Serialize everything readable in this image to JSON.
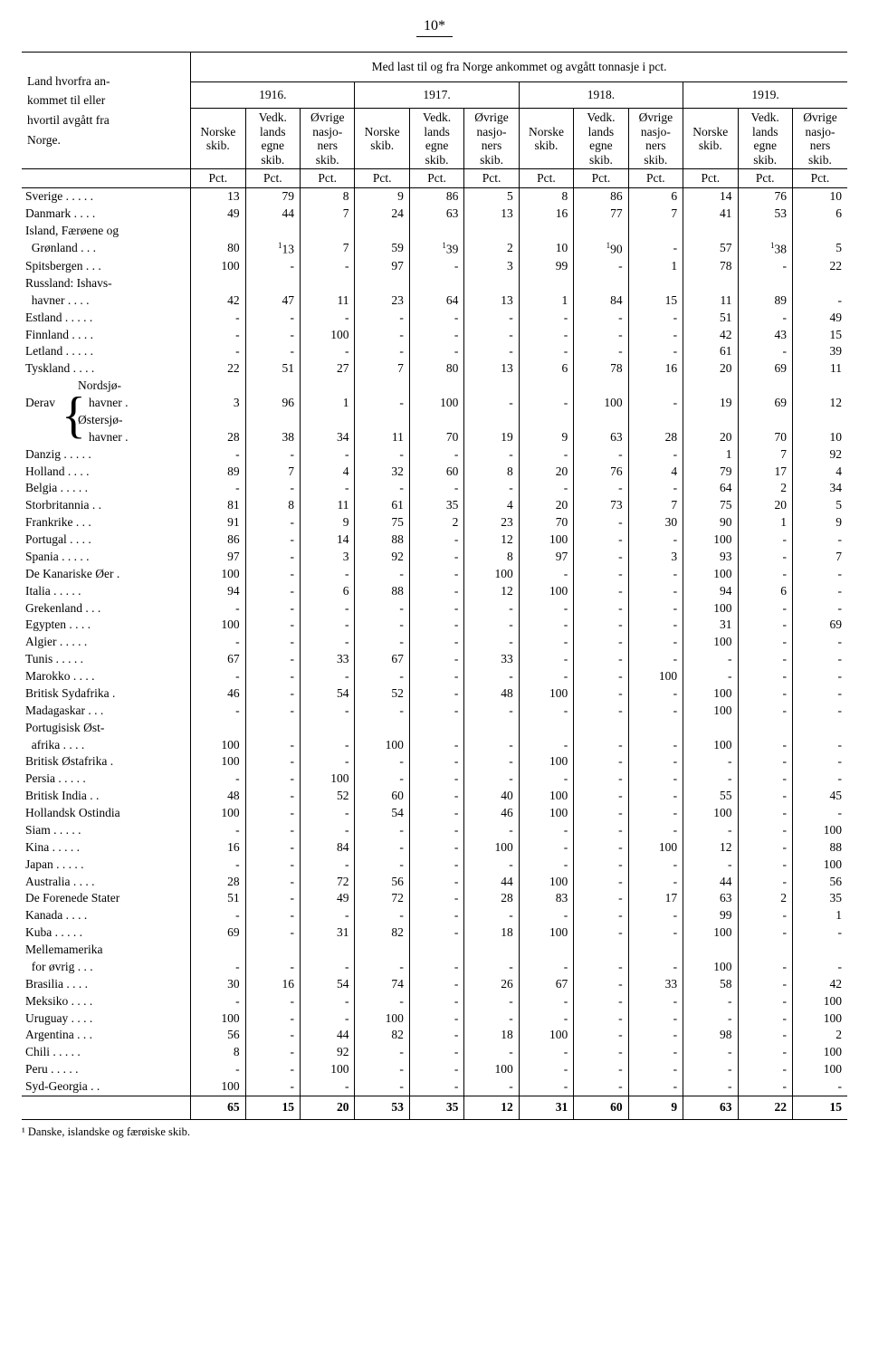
{
  "page_number": "10*",
  "header": {
    "row_title_lines": [
      "Land hvorfra an-",
      "kommet til eller",
      "hvortil avgått fra",
      "Norge."
    ],
    "span_title": "Med last til og fra Norge ankommet og avgått tonnasje i pct.",
    "years": [
      "1916.",
      "1917.",
      "1918.",
      "1919."
    ],
    "sub": [
      "Norske skib.",
      "Vedk. lands egne skib.",
      "Øvrige nasjo- ners skib."
    ],
    "sub_lines": {
      "a": [
        "Norske",
        "skib."
      ],
      "b": [
        "Vedk.",
        "lands",
        "egne",
        "skib."
      ],
      "c": [
        "Øvrige",
        "nasjo-",
        "ners",
        "skib."
      ]
    },
    "pct": "Pct."
  },
  "rows": [
    {
      "label": "Sverige . . . . .",
      "v": [
        "13",
        "79",
        "8",
        "9",
        "86",
        "5",
        "8",
        "86",
        "6",
        "14",
        "76",
        "10"
      ]
    },
    {
      "label": "Danmark . . . .",
      "v": [
        "49",
        "44",
        "7",
        "24",
        "63",
        "13",
        "16",
        "77",
        "7",
        "41",
        "53",
        "6"
      ]
    },
    {
      "label": "Island, Færøene og",
      "v": [
        "",
        "",
        "",
        "",
        "",
        "",
        "",
        "",
        "",
        "",
        "",
        ""
      ],
      "noborder": true
    },
    {
      "label": "  Grønland . . .",
      "v": [
        "80",
        "¹13",
        "7",
        "59",
        "¹39",
        "2",
        "10",
        "¹90",
        "-",
        "57",
        "¹38",
        "5"
      ]
    },
    {
      "label": "Spitsbergen . . .",
      "v": [
        "100",
        "-",
        "-",
        "97",
        "-",
        "3",
        "99",
        "-",
        "1",
        "78",
        "-",
        "22"
      ]
    },
    {
      "label": "Russland: Ishavs-",
      "v": [
        "",
        "",
        "",
        "",
        "",
        "",
        "",
        "",
        "",
        "",
        "",
        ""
      ],
      "noborder": true
    },
    {
      "label": "  havner . . . .",
      "v": [
        "42",
        "47",
        "11",
        "23",
        "64",
        "13",
        "1",
        "84",
        "15",
        "11",
        "89",
        "-"
      ]
    },
    {
      "label": "Estland . . . . .",
      "v": [
        "-",
        "-",
        "-",
        "-",
        "-",
        "-",
        "-",
        "-",
        "-",
        "51",
        "-",
        "49"
      ]
    },
    {
      "label": "Finnland . . . .",
      "v": [
        "-",
        "-",
        "100",
        "-",
        "-",
        "-",
        "-",
        "-",
        "-",
        "42",
        "43",
        "15"
      ]
    },
    {
      "label": "Letland . . . . .",
      "v": [
        "-",
        "-",
        "-",
        "-",
        "-",
        "-",
        "-",
        "-",
        "-",
        "61",
        "-",
        "39"
      ]
    },
    {
      "label": "Tyskland . . . .",
      "v": [
        "22",
        "51",
        "27",
        "7",
        "80",
        "13",
        "6",
        "78",
        "16",
        "20",
        "69",
        "11"
      ]
    },
    {
      "label": "DERAV_N1",
      "v": [
        "",
        "",
        "",
        "",
        "",
        "",
        "",
        "",
        "",
        "",
        "",
        ""
      ],
      "noborder": true,
      "derav": "top"
    },
    {
      "label": "DERAV_N2",
      "v": [
        "3",
        "96",
        "1",
        "-",
        "100",
        "-",
        "-",
        "100",
        "-",
        "19",
        "69",
        "12"
      ],
      "derav": "mid1"
    },
    {
      "label": "DERAV_O1",
      "v": [
        "",
        "",
        "",
        "",
        "",
        "",
        "",
        "",
        "",
        "",
        "",
        ""
      ],
      "noborder": true,
      "derav": "mid2"
    },
    {
      "label": "DERAV_O2",
      "v": [
        "28",
        "38",
        "34",
        "11",
        "70",
        "19",
        "9",
        "63",
        "28",
        "20",
        "70",
        "10"
      ],
      "derav": "bot"
    },
    {
      "label": "Danzig . . . . .",
      "v": [
        "-",
        "-",
        "-",
        "-",
        "-",
        "-",
        "-",
        "-",
        "-",
        "1",
        "7",
        "92"
      ]
    },
    {
      "label": "Holland . . . .",
      "v": [
        "89",
        "7",
        "4",
        "32",
        "60",
        "8",
        "20",
        "76",
        "4",
        "79",
        "17",
        "4"
      ]
    },
    {
      "label": "Belgia . . . . .",
      "v": [
        "-",
        "-",
        "-",
        "-",
        "-",
        "-",
        "-",
        "-",
        "-",
        "64",
        "2",
        "34"
      ]
    },
    {
      "label": "Storbritannia . .",
      "v": [
        "81",
        "8",
        "11",
        "61",
        "35",
        "4",
        "20",
        "73",
        "7",
        "75",
        "20",
        "5"
      ]
    },
    {
      "label": "Frankrike . . .",
      "v": [
        "91",
        "-",
        "9",
        "75",
        "2",
        "23",
        "70",
        "-",
        "30",
        "90",
        "1",
        "9"
      ]
    },
    {
      "label": "Portugal . . . .",
      "v": [
        "86",
        "-",
        "14",
        "88",
        "-",
        "12",
        "100",
        "-",
        "-",
        "100",
        "-",
        "-"
      ]
    },
    {
      "label": "Spania . . . . .",
      "v": [
        "97",
        "-",
        "3",
        "92",
        "-",
        "8",
        "97",
        "-",
        "3",
        "93",
        "-",
        "7"
      ]
    },
    {
      "label": "De Kanariske Øer .",
      "v": [
        "100",
        "-",
        "-",
        "-",
        "-",
        "100",
        "-",
        "-",
        "-",
        "100",
        "-",
        "-"
      ]
    },
    {
      "label": "Italia . . . . .",
      "v": [
        "94",
        "-",
        "6",
        "88",
        "-",
        "12",
        "100",
        "-",
        "-",
        "94",
        "6",
        "-"
      ]
    },
    {
      "label": "Grekenland . . .",
      "v": [
        "-",
        "-",
        "-",
        "-",
        "-",
        "-",
        "-",
        "-",
        "-",
        "100",
        "-",
        "-"
      ]
    },
    {
      "label": "Egypten . . . .",
      "v": [
        "100",
        "-",
        "-",
        "-",
        "-",
        "-",
        "-",
        "-",
        "-",
        "31",
        "-",
        "69"
      ]
    },
    {
      "label": "Algier . . . . .",
      "v": [
        "-",
        "-",
        "-",
        "-",
        "-",
        "-",
        "-",
        "-",
        "-",
        "100",
        "-",
        "-"
      ]
    },
    {
      "label": "Tunis . . . . .",
      "v": [
        "67",
        "-",
        "33",
        "67",
        "-",
        "33",
        "-",
        "-",
        "-",
        "-",
        "-",
        "-"
      ]
    },
    {
      "label": "Marokko . . . .",
      "v": [
        "-",
        "-",
        "-",
        "-",
        "-",
        "-",
        "-",
        "-",
        "100",
        "-",
        "-",
        "-"
      ]
    },
    {
      "label": "Britisk Sydafrika .",
      "v": [
        "46",
        "-",
        "54",
        "52",
        "-",
        "48",
        "100",
        "-",
        "-",
        "100",
        "-",
        "-"
      ]
    },
    {
      "label": "Madagaskar . . .",
      "v": [
        "-",
        "-",
        "-",
        "-",
        "-",
        "-",
        "-",
        "-",
        "-",
        "100",
        "-",
        "-"
      ]
    },
    {
      "label": "Portugisisk Øst-",
      "v": [
        "",
        "",
        "",
        "",
        "",
        "",
        "",
        "",
        "",
        "",
        "",
        ""
      ],
      "noborder": true
    },
    {
      "label": "  afrika . . . .",
      "v": [
        "100",
        "-",
        "-",
        "100",
        "-",
        "-",
        "-",
        "-",
        "-",
        "100",
        "-",
        "-"
      ]
    },
    {
      "label": "Britisk Østafrika .",
      "v": [
        "100",
        "-",
        "-",
        "-",
        "-",
        "-",
        "100",
        "-",
        "-",
        "-",
        "-",
        "-"
      ]
    },
    {
      "label": "Persia . . . . .",
      "v": [
        "-",
        "-",
        "100",
        "-",
        "-",
        "-",
        "-",
        "-",
        "-",
        "-",
        "-",
        "-"
      ]
    },
    {
      "label": "Britisk India . .",
      "v": [
        "48",
        "-",
        "52",
        "60",
        "-",
        "40",
        "100",
        "-",
        "-",
        "55",
        "-",
        "45"
      ]
    },
    {
      "label": "Hollandsk Ostindia",
      "v": [
        "100",
        "-",
        "-",
        "54",
        "-",
        "46",
        "100",
        "-",
        "-",
        "100",
        "-",
        "-"
      ]
    },
    {
      "label": "Siam . . . . .",
      "v": [
        "-",
        "-",
        "-",
        "-",
        "-",
        "-",
        "-",
        "-",
        "-",
        "-",
        "-",
        "100"
      ]
    },
    {
      "label": "Kina . . . . .",
      "v": [
        "16",
        "-",
        "84",
        "-",
        "-",
        "100",
        "-",
        "-",
        "100",
        "12",
        "-",
        "88"
      ]
    },
    {
      "label": "Japan . . . . .",
      "v": [
        "-",
        "-",
        "-",
        "-",
        "-",
        "-",
        "-",
        "-",
        "-",
        "-",
        "-",
        "100"
      ]
    },
    {
      "label": "Australia . . . .",
      "v": [
        "28",
        "-",
        "72",
        "56",
        "-",
        "44",
        "100",
        "-",
        "-",
        "44",
        "-",
        "56"
      ]
    },
    {
      "label": "De Forenede Stater",
      "v": [
        "51",
        "-",
        "49",
        "72",
        "-",
        "28",
        "83",
        "-",
        "17",
        "63",
        "2",
        "35"
      ]
    },
    {
      "label": "Kanada . . . .",
      "v": [
        "-",
        "-",
        "-",
        "-",
        "-",
        "-",
        "-",
        "-",
        "-",
        "99",
        "-",
        "1"
      ]
    },
    {
      "label": "Kuba . . . . .",
      "v": [
        "69",
        "-",
        "31",
        "82",
        "-",
        "18",
        "100",
        "-",
        "-",
        "100",
        "-",
        "-"
      ]
    },
    {
      "label": "Mellemamerika",
      "v": [
        "",
        "",
        "",
        "",
        "",
        "",
        "",
        "",
        "",
        "",
        "",
        ""
      ],
      "noborder": true
    },
    {
      "label": "  for øvrig . . .",
      "v": [
        "-",
        "-",
        "-",
        "-",
        "-",
        "-",
        "-",
        "-",
        "-",
        "100",
        "-",
        "-"
      ]
    },
    {
      "label": "Brasilia . . . .",
      "v": [
        "30",
        "16",
        "54",
        "74",
        "-",
        "26",
        "67",
        "-",
        "33",
        "58",
        "-",
        "42"
      ]
    },
    {
      "label": "Meksiko . . . .",
      "v": [
        "-",
        "-",
        "-",
        "-",
        "-",
        "-",
        "-",
        "-",
        "-",
        "-",
        "-",
        "100"
      ]
    },
    {
      "label": "Uruguay . . . .",
      "v": [
        "100",
        "-",
        "-",
        "100",
        "-",
        "-",
        "-",
        "-",
        "-",
        "-",
        "-",
        "100"
      ]
    },
    {
      "label": "Argentina . . .",
      "v": [
        "56",
        "-",
        "44",
        "82",
        "-",
        "18",
        "100",
        "-",
        "-",
        "98",
        "-",
        "2"
      ]
    },
    {
      "label": "Chili . . . . .",
      "v": [
        "8",
        "-",
        "92",
        "-",
        "-",
        "-",
        "-",
        "-",
        "-",
        "-",
        "-",
        "100"
      ]
    },
    {
      "label": "Peru . . . . .",
      "v": [
        "-",
        "-",
        "100",
        "-",
        "-",
        "100",
        "-",
        "-",
        "-",
        "-",
        "-",
        "100"
      ]
    },
    {
      "label": "Syd-Georgia . .",
      "v": [
        "100",
        "-",
        "-",
        "-",
        "-",
        "-",
        "-",
        "-",
        "-",
        "-",
        "-",
        "-"
      ]
    }
  ],
  "totals": [
    "65",
    "15",
    "20",
    "53",
    "35",
    "12",
    "31",
    "60",
    "9",
    "63",
    "22",
    "15"
  ],
  "derav": {
    "word": "Derav",
    "n1": "Nordsjø-",
    "n2": "havner .",
    "o1": "Østersjø-",
    "o2": "havner ."
  },
  "footnote": "¹  Danske, islandske og færøiske skib.",
  "style": {
    "col_widths": {
      "label": 176,
      "num": 57
    },
    "fontsize_body": 13.5,
    "fontsize_header": 13.5,
    "border_color": "#000000",
    "background": "#ffffff"
  }
}
